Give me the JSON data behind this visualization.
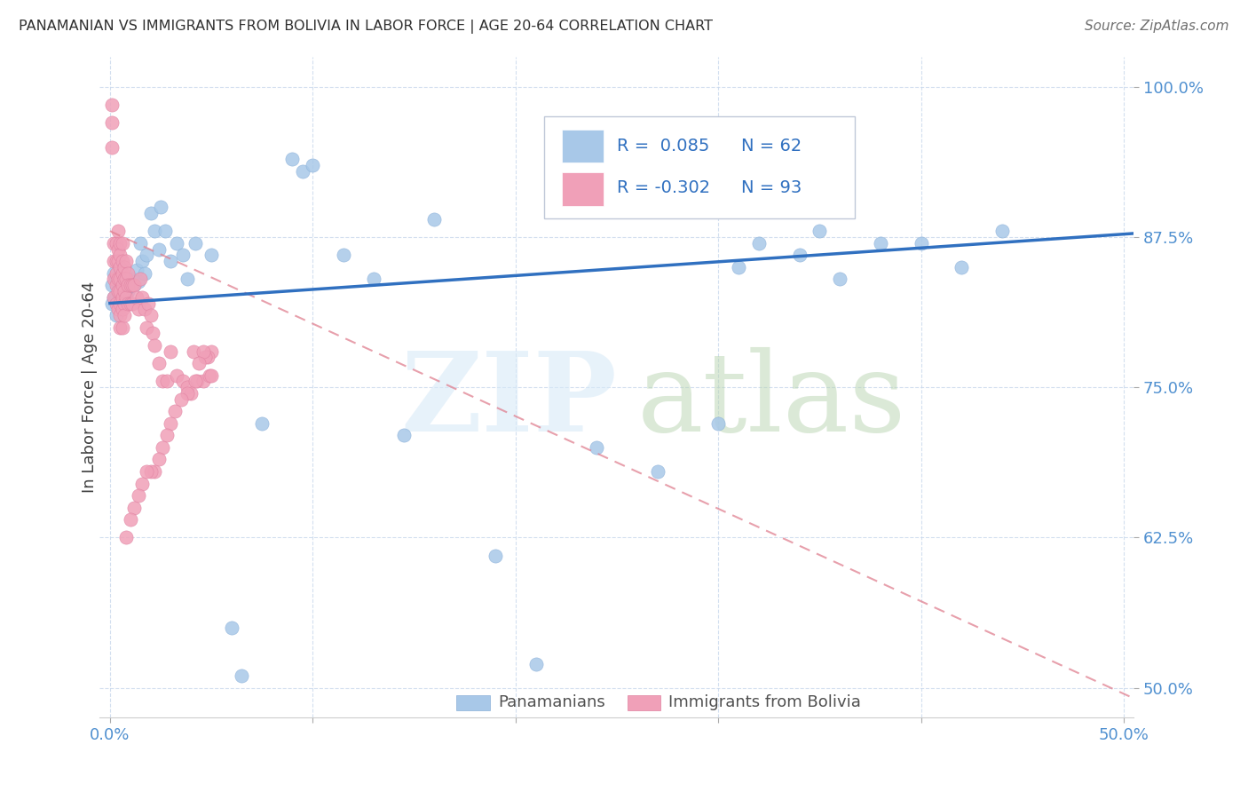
{
  "title": "PANAMANIAN VS IMMIGRANTS FROM BOLIVIA IN LABOR FORCE | AGE 20-64 CORRELATION CHART",
  "source": "Source: ZipAtlas.com",
  "ylabel": "In Labor Force | Age 20-64",
  "xlim": [
    -0.005,
    0.505
  ],
  "ylim": [
    0.475,
    1.025
  ],
  "xticks": [
    0.0,
    0.1,
    0.2,
    0.3,
    0.4,
    0.5
  ],
  "xticklabels": [
    "0.0%",
    "",
    "",
    "",
    "",
    "50.0%"
  ],
  "yticks": [
    0.5,
    0.625,
    0.75,
    0.875,
    1.0
  ],
  "yticklabels": [
    "50.0%",
    "62.5%",
    "75.0%",
    "87.5%",
    "100.0%"
  ],
  "color_blue": "#a8c8e8",
  "color_pink": "#f0a0b8",
  "trendline_blue_color": "#3070c0",
  "trendline_pink_color": "#e08090",
  "blue_intercept": 0.82,
  "blue_slope": 0.115,
  "pink_intercept": 0.88,
  "pink_slope": -0.77,
  "blue_x": [
    0.001,
    0.001,
    0.002,
    0.002,
    0.003,
    0.003,
    0.003,
    0.004,
    0.004,
    0.005,
    0.005,
    0.006,
    0.006,
    0.006,
    0.007,
    0.007,
    0.008,
    0.009,
    0.01,
    0.011,
    0.012,
    0.013,
    0.014,
    0.015,
    0.016,
    0.017,
    0.018,
    0.02,
    0.022,
    0.024,
    0.025,
    0.027,
    0.03,
    0.033,
    0.036,
    0.038,
    0.042,
    0.05,
    0.06,
    0.065,
    0.075,
    0.09,
    0.095,
    0.1,
    0.115,
    0.13,
    0.145,
    0.16,
    0.19,
    0.21,
    0.24,
    0.27,
    0.3,
    0.31,
    0.32,
    0.34,
    0.35,
    0.36,
    0.38,
    0.4,
    0.42,
    0.44
  ],
  "blue_y": [
    0.835,
    0.82,
    0.845,
    0.825,
    0.84,
    0.825,
    0.81,
    0.835,
    0.82,
    0.85,
    0.835,
    0.845,
    0.83,
    0.82,
    0.84,
    0.825,
    0.828,
    0.83,
    0.835,
    0.84,
    0.835,
    0.848,
    0.838,
    0.87,
    0.855,
    0.845,
    0.86,
    0.895,
    0.88,
    0.865,
    0.9,
    0.88,
    0.855,
    0.87,
    0.86,
    0.84,
    0.87,
    0.86,
    0.55,
    0.51,
    0.72,
    0.94,
    0.93,
    0.935,
    0.86,
    0.84,
    0.71,
    0.89,
    0.61,
    0.52,
    0.7,
    0.68,
    0.72,
    0.85,
    0.87,
    0.86,
    0.88,
    0.84,
    0.87,
    0.87,
    0.85,
    0.88
  ],
  "pink_x": [
    0.001,
    0.001,
    0.001,
    0.002,
    0.002,
    0.002,
    0.002,
    0.003,
    0.003,
    0.003,
    0.003,
    0.003,
    0.004,
    0.004,
    0.004,
    0.004,
    0.004,
    0.004,
    0.005,
    0.005,
    0.005,
    0.005,
    0.005,
    0.005,
    0.005,
    0.005,
    0.006,
    0.006,
    0.006,
    0.006,
    0.006,
    0.006,
    0.006,
    0.007,
    0.007,
    0.007,
    0.007,
    0.007,
    0.008,
    0.008,
    0.008,
    0.009,
    0.009,
    0.009,
    0.01,
    0.01,
    0.011,
    0.011,
    0.012,
    0.013,
    0.014,
    0.015,
    0.016,
    0.017,
    0.018,
    0.019,
    0.02,
    0.021,
    0.022,
    0.024,
    0.026,
    0.028,
    0.03,
    0.033,
    0.036,
    0.038,
    0.041,
    0.043,
    0.046,
    0.049,
    0.05,
    0.05,
    0.048,
    0.047,
    0.046,
    0.044,
    0.042,
    0.04,
    0.038,
    0.035,
    0.032,
    0.03,
    0.028,
    0.026,
    0.024,
    0.022,
    0.02,
    0.018,
    0.016,
    0.014,
    0.012,
    0.01,
    0.008
  ],
  "pink_y": [
    0.985,
    0.97,
    0.95,
    0.87,
    0.855,
    0.84,
    0.825,
    0.87,
    0.855,
    0.845,
    0.835,
    0.82,
    0.88,
    0.865,
    0.855,
    0.84,
    0.83,
    0.815,
    0.87,
    0.86,
    0.85,
    0.84,
    0.83,
    0.82,
    0.81,
    0.8,
    0.87,
    0.855,
    0.845,
    0.835,
    0.825,
    0.815,
    0.8,
    0.85,
    0.84,
    0.83,
    0.82,
    0.81,
    0.855,
    0.84,
    0.825,
    0.845,
    0.835,
    0.82,
    0.835,
    0.82,
    0.835,
    0.82,
    0.835,
    0.825,
    0.815,
    0.84,
    0.825,
    0.815,
    0.8,
    0.82,
    0.81,
    0.795,
    0.785,
    0.77,
    0.755,
    0.755,
    0.78,
    0.76,
    0.755,
    0.75,
    0.78,
    0.755,
    0.755,
    0.76,
    0.78,
    0.76,
    0.775,
    0.775,
    0.78,
    0.77,
    0.755,
    0.745,
    0.745,
    0.74,
    0.73,
    0.72,
    0.71,
    0.7,
    0.69,
    0.68,
    0.68,
    0.68,
    0.67,
    0.66,
    0.65,
    0.64,
    0.625
  ]
}
